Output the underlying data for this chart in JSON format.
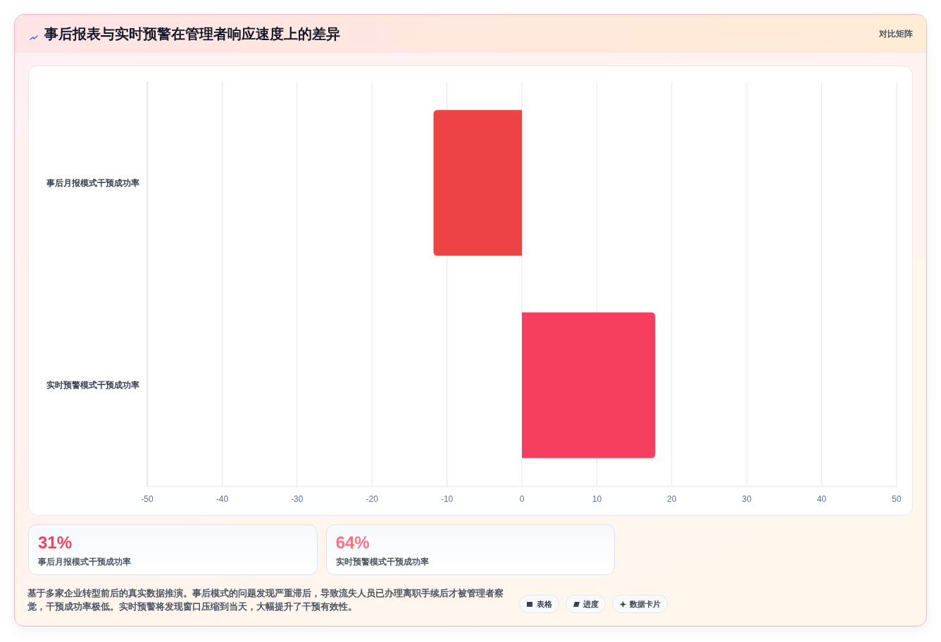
{
  "chart_data": [
    {
      "type": "bar",
      "orientation": "horizontal",
      "title": "事后报表与实时预警在管理者响应速度上的差异",
      "categories": [
        "事后月报模式干预成功率",
        "实时预警模式干预成功率"
      ],
      "values": [
        -11.8,
        17.8
      ],
      "colors": [
        "#ef4444",
        "#f43f5e"
      ],
      "xlim": [
        -50,
        50
      ],
      "xticks": [
        -50,
        -40,
        -30,
        -20,
        -10,
        0,
        10,
        20,
        30,
        40,
        50
      ],
      "grid": "x",
      "annotations": [
        "对比矩阵",
        "基于多家企业转型前后的真实数据推演。事后模式的问题发现严重滞后，导致流失人员已办理离职手续后才被管理者察觉，干预成功率极低。实时预警将发现窗口压缩到当天，大幅提升了干预有效性。",
        "表格",
        "进度",
        "数据卡片"
      ]
    },
    {
      "type": "other",
      "categories": [
        "事后月报模式干预成功率",
        "实时预警模式干预成功率"
      ],
      "value_labels": [
        "31%",
        "64%"
      ]
    }
  ]
}
